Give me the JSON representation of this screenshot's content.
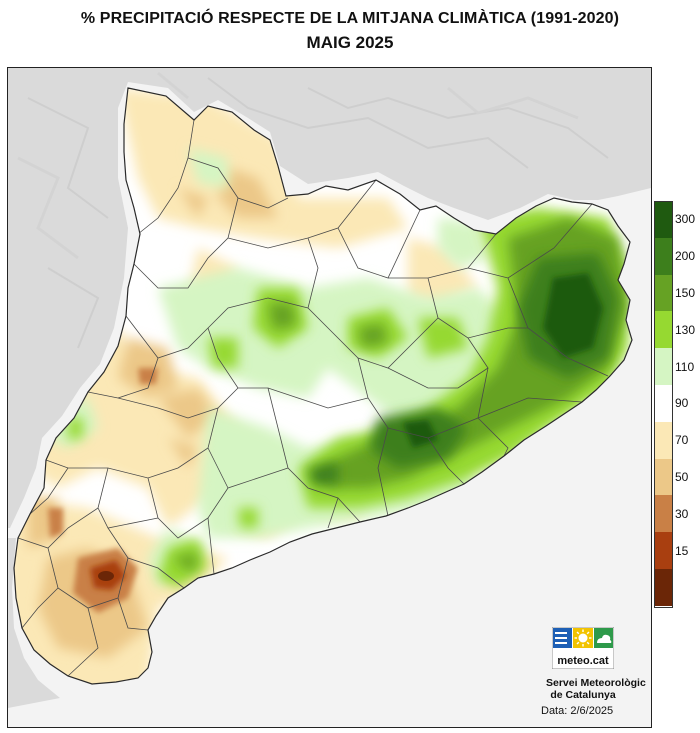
{
  "header": {
    "title": "% PRECIPITACIÓ RESPECTE DE LA MITJANA CLIMÀTICA (1991-2020)",
    "subtitle": "MAIG 2025"
  },
  "legend": {
    "type": "color-scale",
    "placement": "right",
    "items": [
      {
        "label": "300",
        "color": "#1f5a10"
      },
      {
        "label": "200",
        "color": "#3d7f1c"
      },
      {
        "label": "150",
        "color": "#66a224"
      },
      {
        "label": "130",
        "color": "#96d931"
      },
      {
        "label": "110",
        "color": "#d5f5c3"
      },
      {
        "label": "90",
        "color": "#ffffff"
      },
      {
        "label": "70",
        "color": "#fbe8b6"
      },
      {
        "label": "50",
        "color": "#ecc888"
      },
      {
        "label": "30",
        "color": "#c98046"
      },
      {
        "label": "15",
        "color": "#a93f10"
      },
      {
        "label": "",
        "color": "#6b2607"
      }
    ]
  },
  "logo": {
    "text": "meteo.cat",
    "organization_line1": "Servei Meteorològic",
    "organization_line2": "de Catalunya"
  },
  "footer": {
    "date": "Data: 2/6/2025"
  },
  "colors": {
    "sea": "#f2f2f2",
    "terrain_outside": "#dcdcdc",
    "border_lines": "#3a3a3a"
  }
}
